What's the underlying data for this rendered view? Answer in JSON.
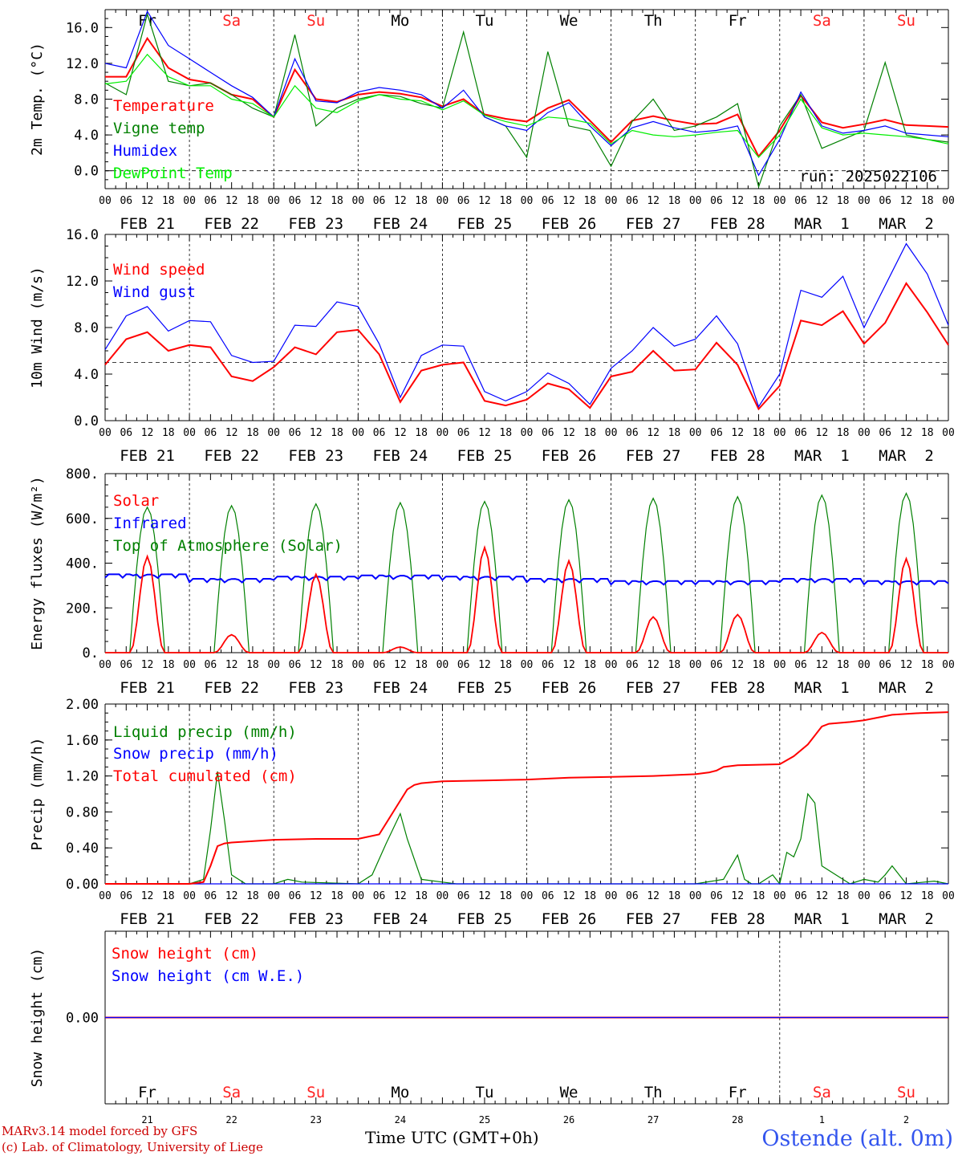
{
  "run_label": "run: 2025022106",
  "x_hour_ticks": [
    "00",
    "06",
    "12",
    "18"
  ],
  "x_last_tick": "00",
  "date_labels": [
    "FEB 21",
    "FEB 22",
    "FEB 23",
    "FEB 24",
    "FEB 25",
    "FEB 26",
    "FEB 27",
    "FEB 28",
    "MAR  1",
    "MAR  2"
  ],
  "weekdays": [
    "Fr",
    "Sa",
    "Su",
    "Mo",
    "Tu",
    "We",
    "Th",
    "Fr",
    "Sa",
    "Su"
  ],
  "weekend_color": "#ff2222",
  "snow_day_numbers": [
    "21",
    "22",
    "23",
    "24",
    "25",
    "26",
    "27",
    "28",
    "1",
    "2"
  ],
  "footer": {
    "credit_line1": "MARv3.14 model forced by GFS",
    "credit_line2": "(c) Lab. of Climatology, University of Liege",
    "time_label": "Time UTC (GMT+0h)",
    "station": "Ostende (alt. 0m)"
  },
  "chart_data": [
    {
      "type": "line",
      "ylabel": "2m Temp. (°C)",
      "ylim": [
        -2,
        18
      ],
      "yticks": [
        "0.0",
        "4.0",
        "8.0",
        "12.0",
        "16.0"
      ],
      "reference_line": 0,
      "x_unit": "hours since FEB 21 00 UTC",
      "series": [
        {
          "name": "Temperature",
          "color": "#ff0000",
          "x": [
            0,
            6,
            12,
            18,
            24,
            30,
            36,
            42,
            48,
            54,
            60,
            66,
            72,
            78,
            84,
            90,
            96,
            102,
            108,
            114,
            120,
            126,
            132,
            138,
            144,
            150,
            156,
            162,
            168,
            174,
            180,
            186,
            192,
            198,
            204,
            210,
            216,
            222,
            228,
            234,
            240
          ],
          "values": [
            10.5,
            10.5,
            14.8,
            11.5,
            10.2,
            9.8,
            8.5,
            8.0,
            6.0,
            11.3,
            8.0,
            7.7,
            8.5,
            8.8,
            8.6,
            8.2,
            7.2,
            8.0,
            6.3,
            5.8,
            5.5,
            7.0,
            7.9,
            5.6,
            3.2,
            5.6,
            6.1,
            5.6,
            5.2,
            5.3,
            6.3,
            1.6,
            4.5,
            8.4,
            5.4,
            4.8,
            5.2,
            5.7,
            5.1,
            5.0,
            4.9
          ]
        },
        {
          "name": "Vigne temp",
          "color": "#008000",
          "x": [
            0,
            6,
            12,
            18,
            24,
            30,
            36,
            42,
            48,
            54,
            60,
            66,
            72,
            78,
            84,
            90,
            96,
            102,
            108,
            114,
            120,
            126,
            132,
            138,
            144,
            150,
            156,
            162,
            168,
            174,
            180,
            186,
            192,
            198,
            204,
            210,
            216,
            222,
            228,
            234,
            240
          ],
          "values": [
            9.8,
            8.5,
            17.5,
            10.0,
            9.5,
            9.8,
            8.5,
            7.0,
            6.0,
            15.2,
            5.0,
            7.0,
            8.0,
            8.5,
            8.3,
            7.5,
            7.0,
            15.5,
            6.0,
            5.0,
            1.5,
            13.3,
            5.0,
            4.5,
            0.5,
            5.5,
            8.0,
            4.5,
            5.0,
            6.0,
            7.5,
            -1.8,
            5.0,
            8.5,
            2.5,
            3.5,
            4.5,
            12.1,
            4.0,
            3.5,
            3.2
          ]
        },
        {
          "name": "Humidex",
          "color": "#0000ff",
          "x": [
            0,
            6,
            12,
            18,
            24,
            30,
            36,
            42,
            48,
            54,
            60,
            66,
            72,
            78,
            84,
            90,
            96,
            102,
            108,
            114,
            120,
            126,
            132,
            138,
            144,
            150,
            156,
            162,
            168,
            174,
            180,
            186,
            192,
            198,
            204,
            210,
            216,
            222,
            228,
            234,
            240
          ],
          "values": [
            12.0,
            11.5,
            17.8,
            14.0,
            12.5,
            11.0,
            9.5,
            8.2,
            6.0,
            12.5,
            7.8,
            7.6,
            8.8,
            9.3,
            9.0,
            8.5,
            7.0,
            9.0,
            6.0,
            5.0,
            4.5,
            6.5,
            7.6,
            5.0,
            2.8,
            4.8,
            5.5,
            4.8,
            4.3,
            4.5,
            5.0,
            -0.5,
            3.5,
            8.8,
            5.0,
            4.2,
            4.5,
            5.0,
            4.2,
            4.0,
            3.8
          ]
        },
        {
          "name": "DewPoint Temp",
          "color": "#00ee00",
          "x": [
            0,
            6,
            12,
            18,
            24,
            30,
            36,
            42,
            48,
            54,
            60,
            66,
            72,
            78,
            84,
            90,
            96,
            102,
            108,
            114,
            120,
            126,
            132,
            138,
            144,
            150,
            156,
            162,
            168,
            174,
            180,
            186,
            192,
            198,
            204,
            210,
            216,
            222,
            228,
            234,
            240
          ],
          "values": [
            9.7,
            10.0,
            13.0,
            10.5,
            9.5,
            9.5,
            8.0,
            7.5,
            6.0,
            9.5,
            7.0,
            6.5,
            7.8,
            8.5,
            8.0,
            7.8,
            6.8,
            7.8,
            6.2,
            5.5,
            5.0,
            6.0,
            5.8,
            5.3,
            3.0,
            4.5,
            4.0,
            3.8,
            4.0,
            4.3,
            4.5,
            1.5,
            4.0,
            8.0,
            4.8,
            4.0,
            4.2,
            4.0,
            3.8,
            3.5,
            3.0
          ]
        }
      ]
    },
    {
      "type": "line",
      "ylabel": "10m Wind (m/s)",
      "ylim": [
        0,
        16
      ],
      "yticks": [
        "0.0",
        "4.0",
        "8.0",
        "12.0",
        "16.0"
      ],
      "reference_line": 5,
      "x_unit": "hours since FEB 21 00 UTC",
      "series": [
        {
          "name": "Wind speed",
          "color": "#ff0000",
          "x": [
            0,
            6,
            12,
            18,
            24,
            30,
            36,
            42,
            48,
            54,
            60,
            66,
            72,
            78,
            84,
            90,
            96,
            102,
            108,
            114,
            120,
            126,
            132,
            138,
            144,
            150,
            156,
            162,
            168,
            174,
            180,
            186,
            192,
            198,
            204,
            210,
            216,
            222,
            228,
            234,
            240
          ],
          "values": [
            4.8,
            7.0,
            7.6,
            6.0,
            6.5,
            6.3,
            3.8,
            3.4,
            4.6,
            6.3,
            5.7,
            7.6,
            7.8,
            5.7,
            1.6,
            4.3,
            4.8,
            5.0,
            1.7,
            1.3,
            1.8,
            3.2,
            2.7,
            1.1,
            3.8,
            4.2,
            6.0,
            4.3,
            4.4,
            6.7,
            4.8,
            1.0,
            3.0,
            8.6,
            8.2,
            9.4,
            6.6,
            8.4,
            11.8,
            9.3,
            6.5
          ]
        },
        {
          "name": "Wind gust",
          "color": "#0000ff",
          "x": [
            0,
            6,
            12,
            18,
            24,
            30,
            36,
            42,
            48,
            54,
            60,
            66,
            72,
            78,
            84,
            90,
            96,
            102,
            108,
            114,
            120,
            126,
            132,
            138,
            144,
            150,
            156,
            162,
            168,
            174,
            180,
            186,
            192,
            198,
            204,
            210,
            216,
            222,
            228,
            234,
            240
          ],
          "values": [
            6.1,
            9.0,
            9.8,
            7.7,
            8.6,
            8.5,
            5.6,
            5.0,
            5.1,
            8.2,
            8.1,
            10.2,
            9.8,
            6.6,
            2.0,
            5.6,
            6.5,
            6.4,
            2.5,
            1.7,
            2.5,
            4.1,
            3.2,
            1.4,
            4.5,
            6.0,
            8.0,
            6.4,
            7.0,
            9.0,
            6.6,
            1.2,
            4.0,
            11.2,
            10.6,
            12.4,
            8.0,
            11.6,
            15.2,
            12.6,
            8.2
          ]
        }
      ]
    },
    {
      "type": "line",
      "ylabel": "Energy fluxes (W/m²)",
      "ylim": [
        0,
        800
      ],
      "yticks": [
        "0.",
        "200.",
        "400.",
        "600.",
        "800."
      ],
      "x_unit": "hours since FEB 21 00 UTC",
      "diurnal_peaks": {
        "Solar": [
          430,
          80,
          350,
          25,
          470,
          410,
          160,
          170,
          90,
          420
        ],
        "Infrared": [
          350,
          330,
          340,
          345,
          340,
          330,
          320,
          320,
          330,
          320
        ],
        "Top of Atmosphere (Solar)": [
          650,
          657,
          665,
          670,
          676,
          683,
          690,
          697,
          704,
          712
        ]
      },
      "series": [
        {
          "name": "Solar",
          "color": "#ff0000"
        },
        {
          "name": "Infrared",
          "color": "#0000ff"
        },
        {
          "name": "Top of Atmosphere (Solar)",
          "color": "#008000"
        }
      ]
    },
    {
      "type": "line",
      "ylabel": "Precip (mm/h)",
      "ylim": [
        0,
        2
      ],
      "yticks": [
        "0.00",
        "0.40",
        "0.80",
        "1.20",
        "1.60",
        "2.00"
      ],
      "x_unit": "hours since FEB 21 00 UTC",
      "series": [
        {
          "name": "Liquid precip (mm/h)",
          "color": "#008000",
          "x": [
            0,
            24,
            28,
            30,
            32,
            34,
            36,
            40,
            44,
            48,
            52,
            56,
            72,
            76,
            80,
            84,
            86,
            90,
            96,
            100,
            144,
            168,
            176,
            180,
            182,
            184,
            186,
            190,
            192,
            194,
            196,
            198,
            200,
            202,
            204,
            212,
            216,
            220,
            222,
            224,
            228,
            236,
            240
          ],
          "values": [
            0,
            0,
            0.05,
            0.6,
            1.25,
            0.7,
            0.1,
            0,
            0,
            0,
            0.05,
            0.02,
            0,
            0.1,
            0.45,
            0.78,
            0.5,
            0.05,
            0.02,
            0,
            0,
            0,
            0.05,
            0.32,
            0.05,
            0,
            0,
            0.1,
            0,
            0.35,
            0.3,
            0.5,
            1.0,
            0.9,
            0.2,
            0,
            0.05,
            0.02,
            0.1,
            0.2,
            0,
            0.03,
            0
          ]
        },
        {
          "name": "Snow precip (mm/h)",
          "color": "#0000ff",
          "x": [
            0,
            240
          ],
          "values": [
            0,
            0
          ]
        },
        {
          "name": "Total cumulated (cm)",
          "color": "#ff0000",
          "x": [
            0,
            24,
            28,
            30,
            32,
            34,
            36,
            48,
            60,
            72,
            78,
            82,
            86,
            88,
            90,
            96,
            108,
            120,
            132,
            144,
            156,
            168,
            172,
            174,
            176,
            180,
            192,
            196,
            200,
            204,
            206,
            212,
            216,
            224,
            232,
            240
          ],
          "values": [
            0,
            0,
            0.02,
            0.2,
            0.42,
            0.45,
            0.46,
            0.49,
            0.5,
            0.5,
            0.55,
            0.8,
            1.05,
            1.1,
            1.12,
            1.14,
            1.15,
            1.16,
            1.18,
            1.19,
            1.2,
            1.22,
            1.24,
            1.26,
            1.3,
            1.32,
            1.33,
            1.42,
            1.55,
            1.75,
            1.78,
            1.8,
            1.82,
            1.88,
            1.9,
            1.91
          ]
        }
      ]
    },
    {
      "type": "line",
      "ylabel": "Snow height (cm)",
      "yticks": [
        "0.00"
      ],
      "x_unit": "hours since FEB 21 00 UTC",
      "series": [
        {
          "name": "Snow height (cm)",
          "color": "#ff0000",
          "x": [
            0,
            240
          ],
          "values": [
            0,
            0
          ]
        },
        {
          "name": "Snow height (cm W.E.)",
          "color": "#0000ff",
          "x": [
            0,
            240
          ],
          "values": [
            0,
            0
          ]
        }
      ]
    }
  ]
}
